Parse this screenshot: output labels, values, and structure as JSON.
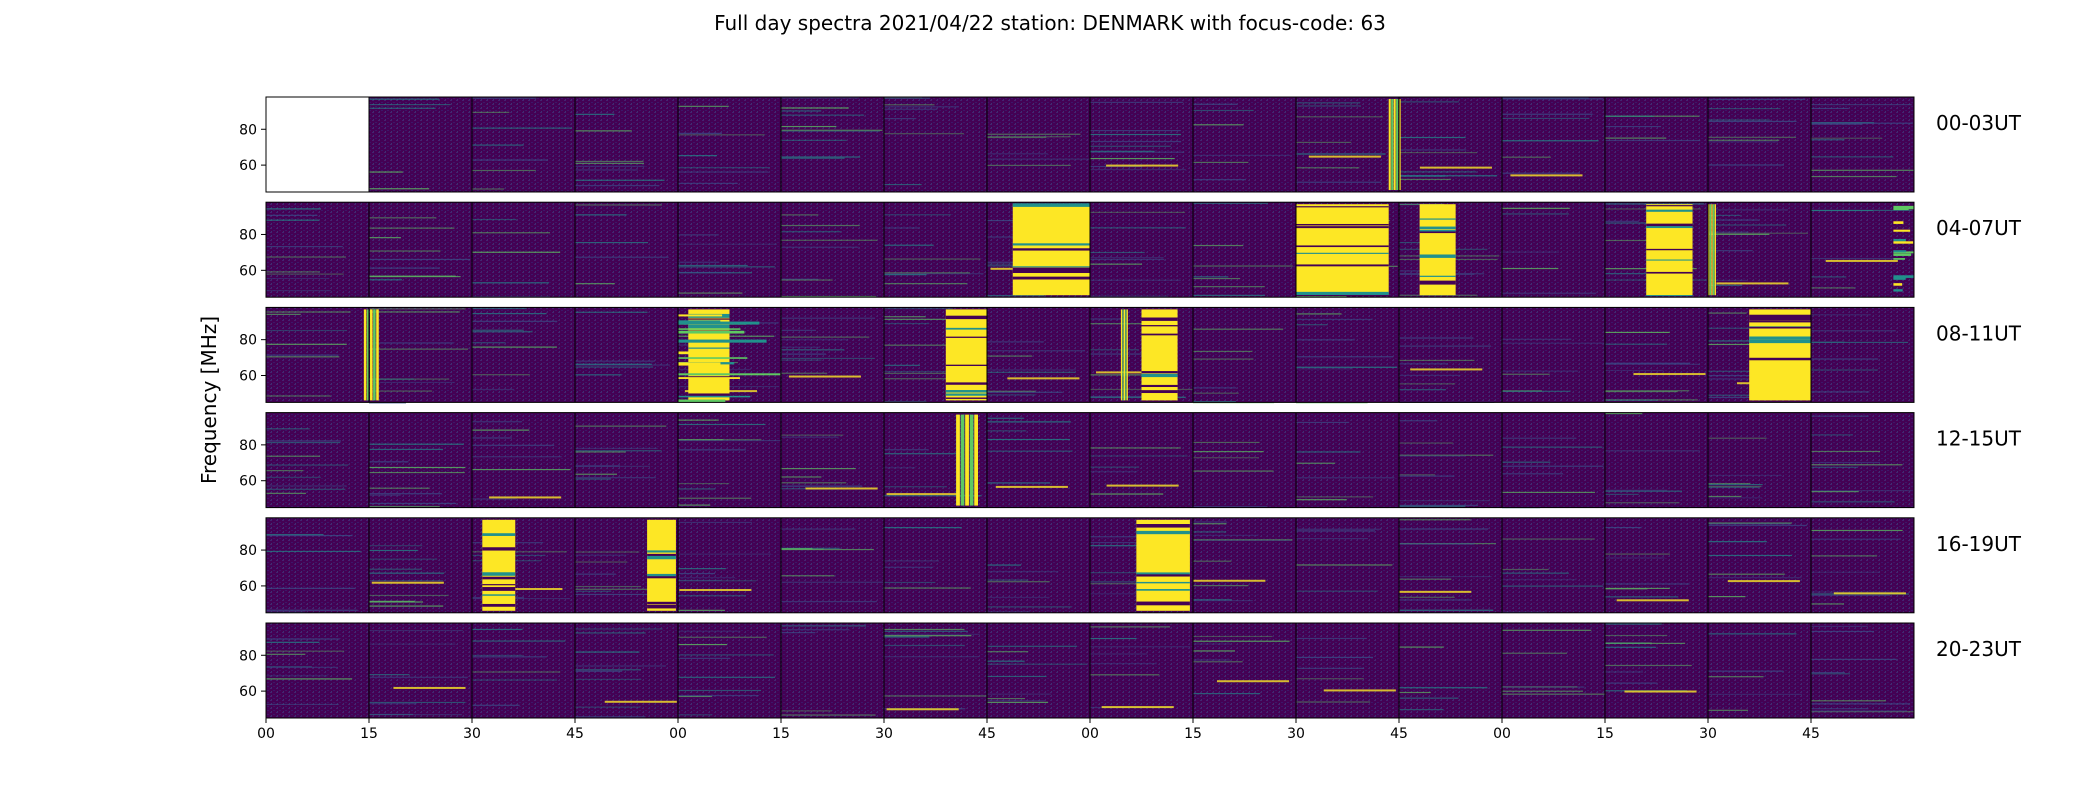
{
  "chart_data": {
    "type": "heatmap",
    "title": "Full day spectra 2021/04/22 station: DENMARK with focus-code: 63",
    "ylabel": "Frequency [MHz]",
    "yticks": [
      "80",
      "60"
    ],
    "ylim": [
      45,
      98
    ],
    "xticks": [
      "00",
      "15",
      "30",
      "45",
      "00",
      "15",
      "30",
      "45",
      "00",
      "15",
      "30",
      "45",
      "00",
      "15",
      "30",
      "45"
    ],
    "colormap": "viridis",
    "colors": {
      "background_low": "#440154",
      "mid_low": "#3b528b",
      "mid": "#21918c",
      "mid_high": "#5ec962",
      "high": "#fde725"
    },
    "rows": [
      {
        "label": "00-03UT"
      },
      {
        "label": "04-07UT"
      },
      {
        "label": "08-11UT"
      },
      {
        "label": "12-15UT"
      },
      {
        "label": "16-19UT"
      },
      {
        "label": "20-23UT"
      }
    ],
    "panels_per_row": 16,
    "missing_panels": [
      [
        0,
        0
      ]
    ]
  }
}
